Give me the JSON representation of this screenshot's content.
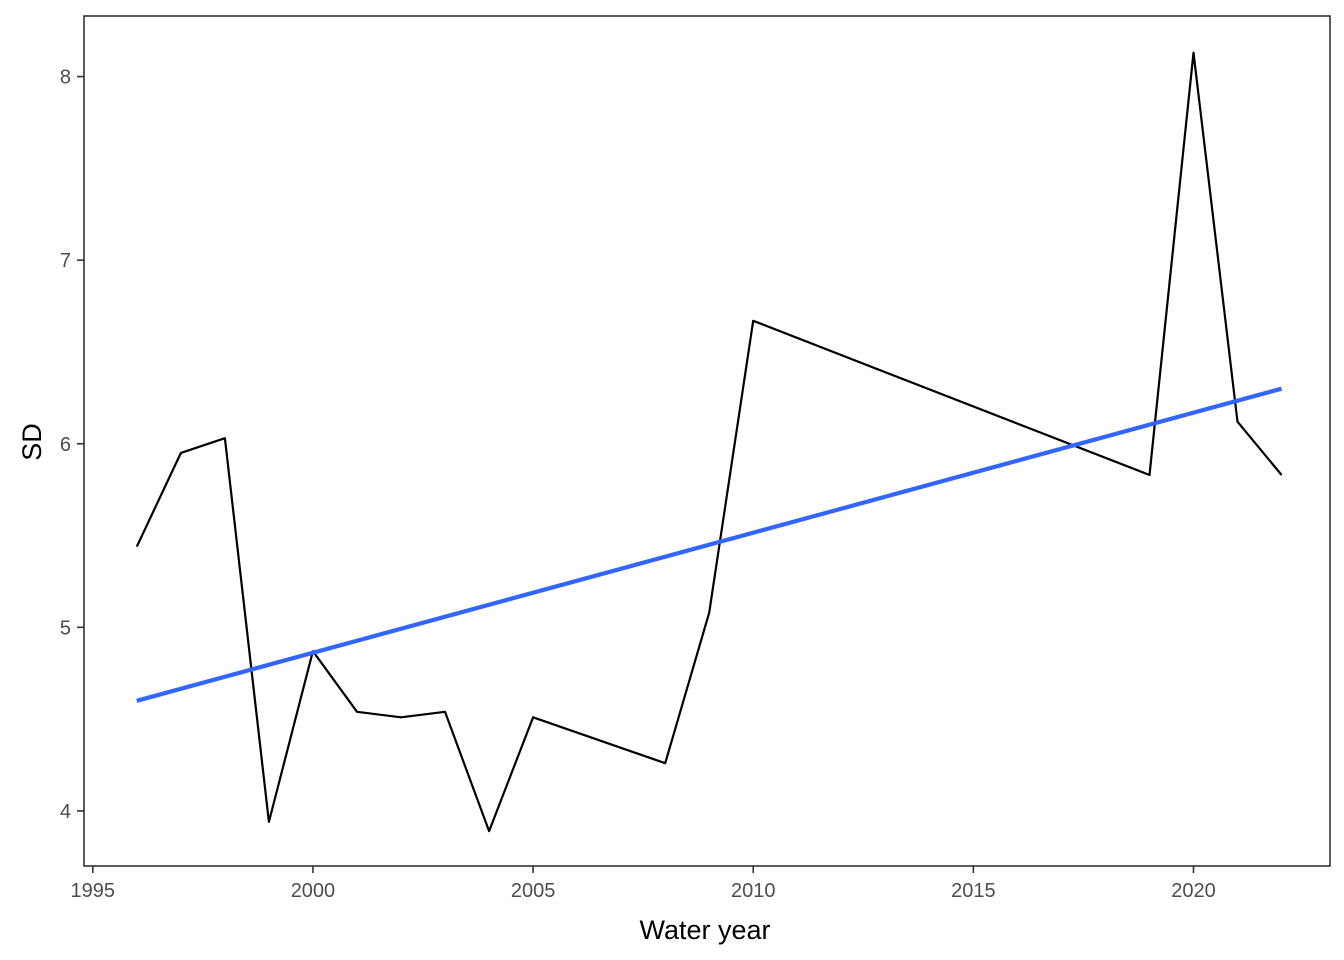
{
  "chart_data": {
    "type": "line",
    "xlabel": "Water year",
    "ylabel": "SD",
    "xlim": [
      1994.8,
      2023.1
    ],
    "ylim": [
      3.7,
      8.33
    ],
    "x_ticks": [
      1995,
      2000,
      2005,
      2010,
      2015,
      2020
    ],
    "x_tick_labels": [
      "1995",
      "2000",
      "2005",
      "2010",
      "2015",
      "2020"
    ],
    "y_ticks": [
      4,
      5,
      6,
      7,
      8
    ],
    "y_tick_labels": [
      "4",
      "5",
      "6",
      "7",
      "8"
    ],
    "grid": false,
    "series": [
      {
        "style": "line",
        "color": "#000000",
        "points": [
          [
            1996,
            5.44
          ],
          [
            1997,
            5.95
          ],
          [
            1998,
            6.03
          ],
          [
            1999,
            3.94
          ],
          [
            2000,
            4.87
          ],
          [
            2001,
            4.54
          ],
          [
            2002,
            4.51
          ],
          [
            2003,
            4.54
          ],
          [
            2004,
            3.89
          ],
          [
            2005,
            4.51
          ],
          [
            2008,
            4.26
          ],
          [
            2009,
            5.08
          ],
          [
            2010,
            6.67
          ],
          [
            2019,
            5.83
          ],
          [
            2020,
            8.13
          ],
          [
            2021,
            6.12
          ],
          [
            2022,
            5.83
          ]
        ]
      },
      {
        "style": "trend",
        "color": "#3366ff",
        "points": [
          [
            1996,
            4.6
          ],
          [
            2022,
            6.3
          ]
        ]
      }
    ]
  }
}
